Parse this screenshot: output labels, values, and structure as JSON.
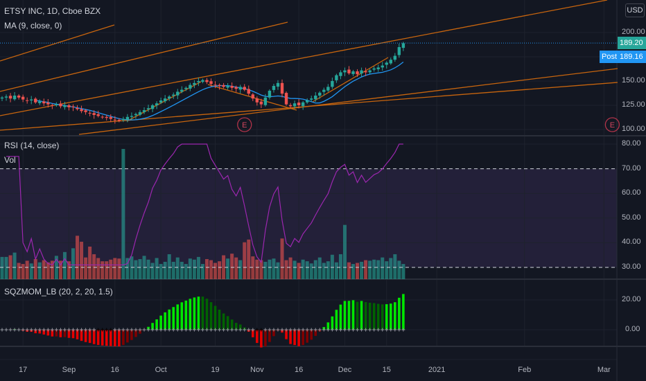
{
  "header": {
    "symbol_title": "ETSY INC, 1D, Cboe BZX",
    "ma_label": "MA (9, close, 0)",
    "rsi_label": "RSI (14, close)",
    "vol_label": "Vol",
    "sqz_label": "SQZMOM_LB (20, 2, 20, 1.5)",
    "currency_button": "USD"
  },
  "price_badges": {
    "last_price": "189.20",
    "post_label": "Post",
    "post_price": "189.16"
  },
  "earnings_marker": "E",
  "colors": {
    "up": "#26a69a",
    "down": "#ef5350",
    "ma": "#2196f3",
    "rsi": "#9c27b0",
    "trendline": "#c8650e",
    "last_price": "#26a69a",
    "post": "#2196f3",
    "sqz_up_strong": "#00e600",
    "sqz_up_weak": "#006400",
    "sqz_down_strong": "#e60000",
    "sqz_down_weak": "#800000"
  },
  "chart_data": {
    "type": "candlestick",
    "title": "ETSY INC, 1D, Cboe BZX",
    "closes": [
      133,
      134,
      132,
      135,
      133,
      131,
      130,
      131,
      128,
      129,
      127,
      126,
      125,
      126,
      124,
      125,
      123,
      123,
      121,
      119,
      118,
      117,
      115,
      114,
      113,
      112,
      111,
      110,
      109,
      111,
      113,
      114,
      116,
      118,
      120,
      122,
      125,
      127,
      130,
      132,
      134,
      136,
      139,
      141,
      143,
      146,
      148,
      150,
      151,
      149,
      147,
      146,
      145,
      144,
      145,
      143,
      142,
      144,
      141,
      137,
      132,
      128,
      126,
      133,
      140,
      145,
      148,
      137,
      126,
      124,
      127,
      125,
      128,
      130,
      132,
      135,
      138,
      141,
      144,
      150,
      156,
      159,
      161,
      158,
      160,
      157,
      161,
      159,
      161,
      163,
      164,
      166,
      169,
      172,
      176,
      185,
      189
    ],
    "volumes_millions": [
      4.1,
      4.1,
      4.4,
      4.9,
      3.0,
      2.8,
      3.4,
      2.9,
      3.7,
      3.1,
      3.5,
      3.1,
      3.4,
      4.3,
      3.4,
      5.0,
      3.3,
      5.7,
      8.0,
      6.9,
      4.0,
      6.0,
      4.6,
      3.9,
      3.3,
      3.3,
      3.6,
      3.9,
      3.8,
      24.0,
      3.9,
      4.2,
      3.5,
      3.7,
      4.3,
      3.6,
      3.0,
      3.9,
      2.8,
      3.2,
      4.6,
      3.2,
      4.0,
      3.2,
      2.8,
      3.8,
      3.6,
      4.1,
      2.8,
      3.7,
      3.5,
      3.0,
      3.3,
      4.4,
      3.8,
      4.7,
      4.0,
      3.5,
      6.8,
      7.3,
      4.2,
      3.6,
      3.5,
      3.2,
      3.6,
      3.8,
      3.1,
      7.5,
      3.5,
      4.0,
      3.4,
      3.0,
      3.6,
      3.3,
      2.9,
      3.5,
      4.0,
      3.0,
      3.3,
      4.5,
      3.1,
      4.6,
      10.0,
      3.1,
      2.8,
      3.0,
      3.2,
      3.5,
      3.4,
      3.6,
      3.5,
      4.0,
      3.3,
      3.9,
      4.6,
      3.4,
      2.8
    ],
    "price_axis": {
      "ticks": [
        "200.00",
        "150.00",
        "125.00",
        "100.00"
      ],
      "tick_values": [
        200,
        150,
        125,
        100
      ],
      "range": [
        100,
        200
      ]
    },
    "rsi_axis": {
      "ticks": [
        "80.00",
        "70.00",
        "60.00",
        "50.00",
        "40.00",
        "30.00"
      ],
      "tick_values": [
        80,
        70,
        60,
        50,
        40,
        30
      ],
      "range": [
        30,
        80
      ],
      "bands": [
        30,
        70
      ]
    },
    "sqz_axis": {
      "ticks": [
        "20.00",
        "0.00"
      ],
      "tick_values": [
        20,
        0
      ]
    },
    "time_axis": [
      {
        "label": "17",
        "bar": 5
      },
      {
        "label": "Sep",
        "bar": 16
      },
      {
        "label": "16",
        "bar": 27
      },
      {
        "label": "Oct",
        "bar": 38
      },
      {
        "label": "19",
        "bar": 51
      },
      {
        "label": "Nov",
        "bar": 61
      },
      {
        "label": "16",
        "bar": 71
      },
      {
        "label": "Dec",
        "bar": 82
      },
      {
        "label": "15",
        "bar": 92
      },
      {
        "label": "2021",
        "bar": 104
      },
      {
        "label": "Feb",
        "bar": 125
      },
      {
        "label": "Mar",
        "bar": 144
      }
    ],
    "earnings_bars": [
      58,
      146
    ]
  }
}
